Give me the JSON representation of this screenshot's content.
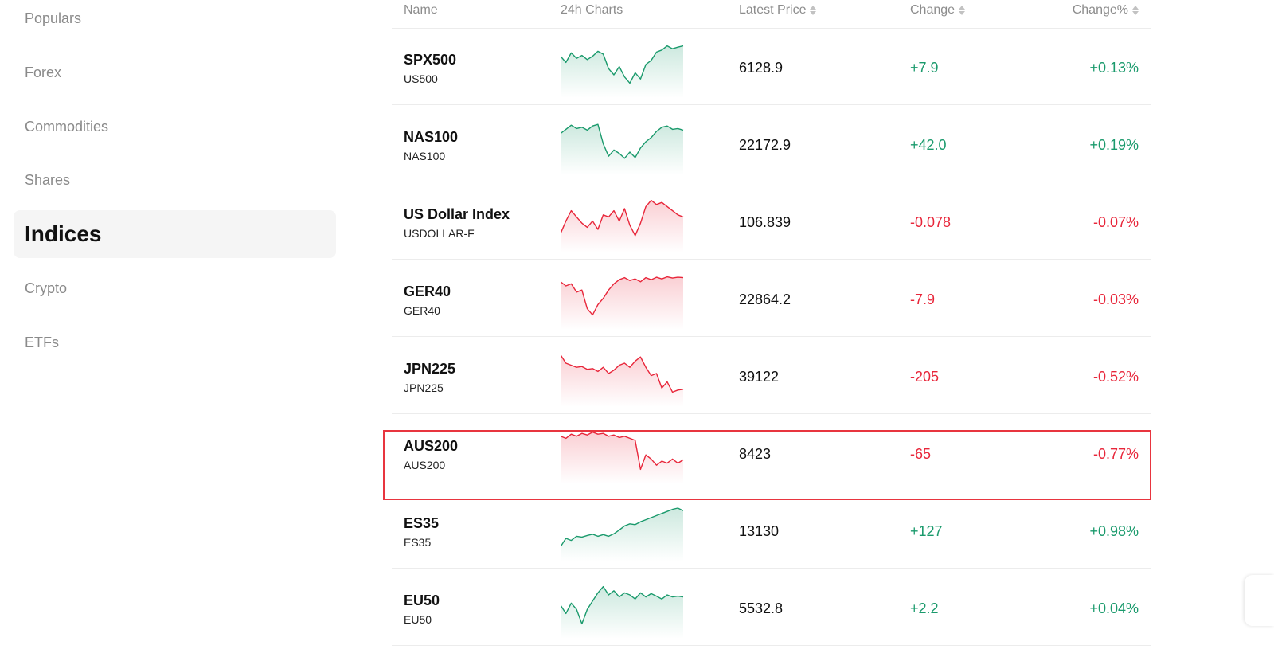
{
  "sidebar": {
    "items": [
      {
        "id": "populars",
        "label": "Populars",
        "active": false
      },
      {
        "id": "forex",
        "label": "Forex",
        "active": false
      },
      {
        "id": "commodities",
        "label": "Commodities",
        "active": false
      },
      {
        "id": "shares",
        "label": "Shares",
        "active": false
      },
      {
        "id": "indices",
        "label": "Indices",
        "active": true
      },
      {
        "id": "crypto",
        "label": "Crypto",
        "active": false
      },
      {
        "id": "etfs",
        "label": "ETFs",
        "active": false
      }
    ]
  },
  "table": {
    "headers": {
      "name": "Name",
      "chart": "24h Charts",
      "price": "Latest Price",
      "change": "Change",
      "change_pct": "Change%"
    },
    "rows": [
      {
        "symbol": "SPX500",
        "sub": "US500",
        "price": "6128.9",
        "change": "+7.9",
        "change_pct": "+0.13%",
        "direction": "up",
        "spark": [
          0.3,
          0.45,
          0.22,
          0.35,
          0.28,
          0.38,
          0.3,
          0.18,
          0.25,
          0.6,
          0.75,
          0.55,
          0.8,
          0.95,
          0.7,
          0.85,
          0.5,
          0.4,
          0.2,
          0.15,
          0.05,
          0.12,
          0.08,
          0.05
        ]
      },
      {
        "symbol": "NAS100",
        "sub": "NAS100",
        "price": "22172.9",
        "change": "+42.0",
        "change_pct": "+0.19%",
        "direction": "up",
        "spark": [
          0.3,
          0.2,
          0.1,
          0.18,
          0.15,
          0.22,
          0.12,
          0.08,
          0.55,
          0.85,
          0.7,
          0.78,
          0.9,
          0.75,
          0.88,
          0.65,
          0.5,
          0.4,
          0.25,
          0.15,
          0.12,
          0.2,
          0.18,
          0.22
        ]
      },
      {
        "symbol": "US Dollar Index",
        "sub": "USDOLLAR-F",
        "price": "106.839",
        "change": "-0.078",
        "change_pct": "-0.07%",
        "direction": "down",
        "spark": [
          0.85,
          0.55,
          0.3,
          0.45,
          0.6,
          0.7,
          0.55,
          0.75,
          0.4,
          0.45,
          0.3,
          0.55,
          0.25,
          0.65,
          0.9,
          0.6,
          0.2,
          0.05,
          0.15,
          0.1,
          0.2,
          0.3,
          0.4,
          0.45
        ]
      },
      {
        "symbol": "GER40",
        "sub": "GER40",
        "price": "22864.2",
        "change": "-7.9",
        "change_pct": "-0.03%",
        "direction": "down",
        "spark": [
          0.15,
          0.25,
          0.2,
          0.4,
          0.35,
          0.8,
          0.95,
          0.7,
          0.55,
          0.35,
          0.2,
          0.1,
          0.05,
          0.12,
          0.08,
          0.15,
          0.05,
          0.1,
          0.04,
          0.08,
          0.03,
          0.06,
          0.04,
          0.05
        ]
      },
      {
        "symbol": "JPN225",
        "sub": "JPN225",
        "price": "39122",
        "change": "-205",
        "change_pct": "-0.52%",
        "direction": "down",
        "spark": [
          0.05,
          0.25,
          0.3,
          0.35,
          0.33,
          0.4,
          0.38,
          0.45,
          0.35,
          0.5,
          0.42,
          0.3,
          0.25,
          0.35,
          0.2,
          0.1,
          0.35,
          0.55,
          0.5,
          0.85,
          0.7,
          0.95,
          0.9,
          0.88
        ]
      },
      {
        "symbol": "AUS200",
        "sub": "AUS200",
        "price": "8423",
        "change": "-65",
        "change_pct": "-0.77%",
        "direction": "down",
        "spark": [
          0.15,
          0.2,
          0.1,
          0.15,
          0.08,
          0.12,
          0.05,
          0.1,
          0.08,
          0.15,
          0.12,
          0.18,
          0.15,
          0.2,
          0.25,
          0.95,
          0.6,
          0.7,
          0.85,
          0.75,
          0.8,
          0.7,
          0.8,
          0.72
        ]
      },
      {
        "symbol": "ES35",
        "sub": "ES35",
        "price": "13130",
        "change": "+127",
        "change_pct": "+0.98%",
        "direction": "up",
        "spark": [
          0.95,
          0.75,
          0.8,
          0.7,
          0.72,
          0.68,
          0.65,
          0.7,
          0.66,
          0.7,
          0.64,
          0.55,
          0.45,
          0.4,
          0.42,
          0.35,
          0.3,
          0.25,
          0.2,
          0.15,
          0.1,
          0.05,
          0.02,
          0.08
        ]
      },
      {
        "symbol": "EU50",
        "sub": "EU50",
        "price": "5532.8",
        "change": "+2.2",
        "change_pct": "+0.04%",
        "direction": "up",
        "spark": [
          0.5,
          0.7,
          0.45,
          0.6,
          0.95,
          0.6,
          0.4,
          0.2,
          0.05,
          0.25,
          0.15,
          0.3,
          0.2,
          0.25,
          0.35,
          0.2,
          0.3,
          0.22,
          0.28,
          0.35,
          0.25,
          0.3,
          0.28,
          0.3
        ]
      }
    ]
  },
  "colors": {
    "positive": "#1a9a6c",
    "negative": "#e8263a",
    "highlight_border": "#e8353f"
  }
}
